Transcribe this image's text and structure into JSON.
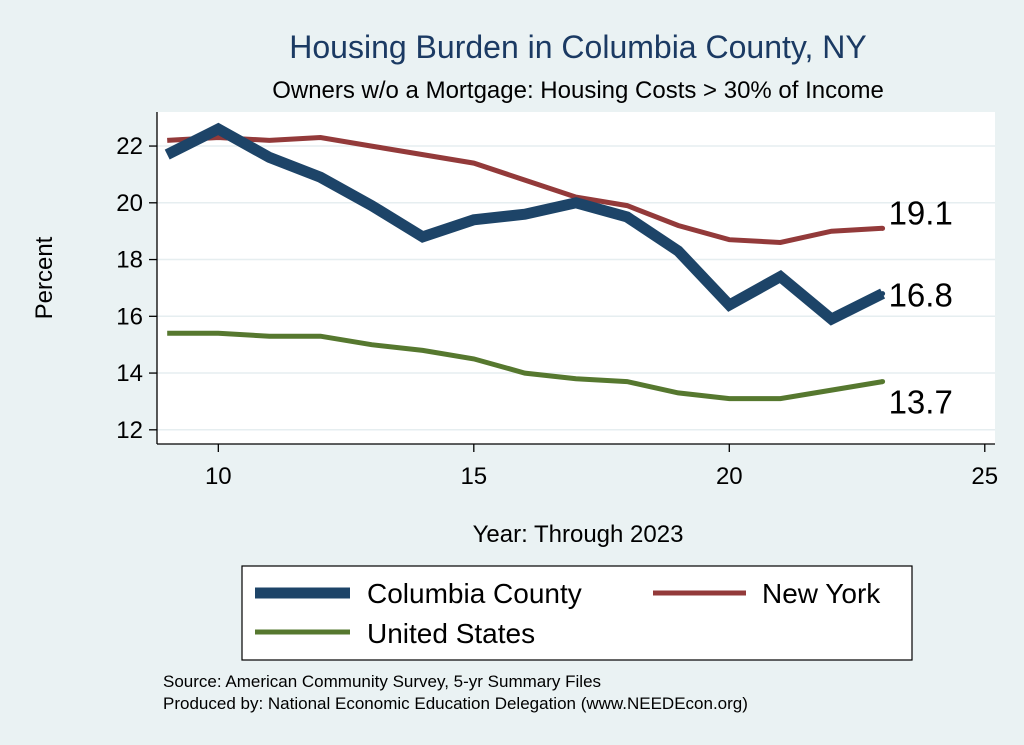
{
  "chart_data": {
    "type": "line",
    "title": "Housing Burden in Columbia County, NY",
    "subtitle": "Owners w/o a Mortgage: Housing Costs > 30% of Income",
    "xlabel": "Year: Through 2023",
    "ylabel": "Percent",
    "xlim": [
      8.8,
      25.2
    ],
    "ylim": [
      11.5,
      23.2
    ],
    "x_ticks": [
      10,
      15,
      20,
      25
    ],
    "y_ticks": [
      12,
      14,
      16,
      18,
      20,
      22
    ],
    "grid": true,
    "legend_position": "bottom",
    "series": [
      {
        "name": "New York",
        "color": "#933a3a",
        "x": [
          9,
          10,
          11,
          12,
          13,
          14,
          15,
          16,
          17,
          18,
          19,
          20,
          21,
          22,
          23
        ],
        "values": [
          22.2,
          22.3,
          22.2,
          22.3,
          22.0,
          21.7,
          21.4,
          20.8,
          20.2,
          19.9,
          19.2,
          18.7,
          18.6,
          19.0,
          19.1
        ],
        "end_label": "19.1"
      },
      {
        "name": "Columbia County",
        "color": "#1d4468",
        "x": [
          9,
          10,
          11,
          12,
          13,
          14,
          15,
          16,
          17,
          18,
          19,
          20,
          21,
          22,
          23
        ],
        "values": [
          21.7,
          22.6,
          21.6,
          20.9,
          19.9,
          18.8,
          19.4,
          19.6,
          20.0,
          19.5,
          18.3,
          16.4,
          17.4,
          15.9,
          16.8
        ],
        "end_label": "16.8"
      },
      {
        "name": "United States",
        "color": "#56782f",
        "x": [
          9,
          10,
          11,
          12,
          13,
          14,
          15,
          16,
          17,
          18,
          19,
          20,
          21,
          22,
          23
        ],
        "values": [
          15.4,
          15.4,
          15.3,
          15.3,
          15.0,
          14.8,
          14.5,
          14.0,
          13.8,
          13.7,
          13.3,
          13.1,
          13.1,
          13.4,
          13.7
        ],
        "end_label": "13.7"
      }
    ]
  },
  "legend": {
    "items": [
      "Columbia County",
      "New York",
      "United States"
    ]
  },
  "footer": {
    "source": "Source: American Community Survey, 5-yr Summary Files",
    "produced_by": "Produced by: National Economic Education Delegation (www.NEEDEcon.org)"
  },
  "colors": {
    "background": "#eaf2f3",
    "plot_background": "#ffffff",
    "grid": "#e6eef0",
    "title": "#1b3a63"
  }
}
